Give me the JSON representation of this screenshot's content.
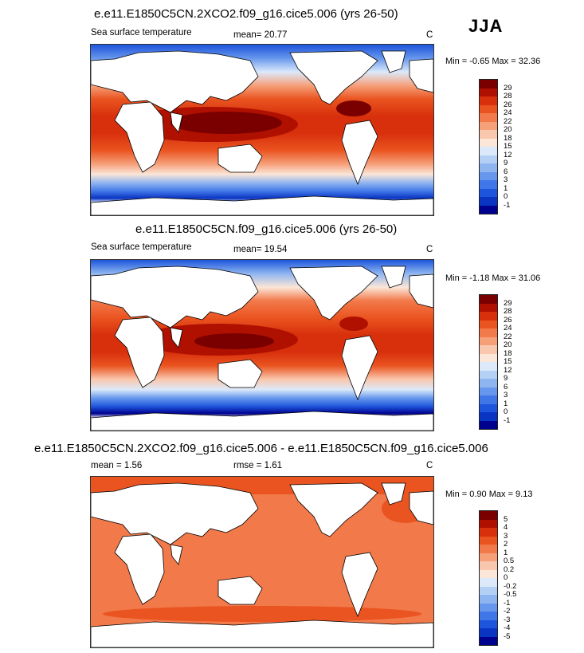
{
  "season": "JJA",
  "panels": [
    {
      "title": "e.e11.E1850C5CN.2XCO2.f09_g16.cice5.006 (yrs 26-50)",
      "left_label": "Sea surface temperature",
      "stat1": "mean=  20.77",
      "units": "C",
      "minmax": "Min =  -0.65 Max =  32.36",
      "colorbar": {
        "labels": [
          "29",
          "28",
          "26",
          "24",
          "22",
          "20",
          "18",
          "15",
          "12",
          "9",
          "6",
          "3",
          "1",
          "0",
          "-1"
        ],
        "colors": [
          "#7a0000",
          "#b01000",
          "#d8300c",
          "#ea5420",
          "#f2794a",
          "#f6a07a",
          "#f9c7ad",
          "#fbe6d8",
          "#dbe9fa",
          "#b5d0f5",
          "#8fb5f0",
          "#6797ec",
          "#3f76e8",
          "#1d55dc",
          "#0a34c2",
          "#00008e"
        ]
      }
    },
    {
      "title": "e.e11.E1850C5CN.f09_g16.cice5.006 (yrs 26-50)",
      "left_label": "Sea surface temperature",
      "stat1": "mean=  19.54",
      "units": "C",
      "minmax": "Min =  -1.18 Max =  31.06",
      "colorbar": {
        "labels": [
          "29",
          "28",
          "26",
          "24",
          "22",
          "20",
          "18",
          "15",
          "12",
          "9",
          "6",
          "3",
          "1",
          "0",
          "-1"
        ],
        "colors": [
          "#7a0000",
          "#b01000",
          "#d8300c",
          "#ea5420",
          "#f2794a",
          "#f6a07a",
          "#f9c7ad",
          "#fbe6d8",
          "#dbe9fa",
          "#b5d0f5",
          "#8fb5f0",
          "#6797ec",
          "#3f76e8",
          "#1d55dc",
          "#0a34c2",
          "#00008e"
        ]
      }
    },
    {
      "title": "e.e11.E1850C5CN.2XCO2.f09_g16.cice5.006 - e.e11.E1850C5CN.f09_g16.cice5.006",
      "left_label": "mean =   1.56",
      "stat1": "rmse =   1.61",
      "units": "C",
      "minmax": "Min =  0.90 Max =   9.13",
      "colorbar": {
        "labels": [
          "5",
          "4",
          "3",
          "2",
          "1",
          "0.5",
          "0.2",
          "0",
          "-0.2",
          "-0.5",
          "-1",
          "-2",
          "-3",
          "-4",
          "-5"
        ],
        "colors": [
          "#7a0000",
          "#b01000",
          "#d8300c",
          "#ea5420",
          "#f2794a",
          "#f6a07a",
          "#f9c7ad",
          "#fbe6d8",
          "#dbe9fa",
          "#b5d0f5",
          "#8fb5f0",
          "#6797ec",
          "#3f76e8",
          "#1d55dc",
          "#0a34c2",
          "#00008e"
        ]
      }
    }
  ]
}
